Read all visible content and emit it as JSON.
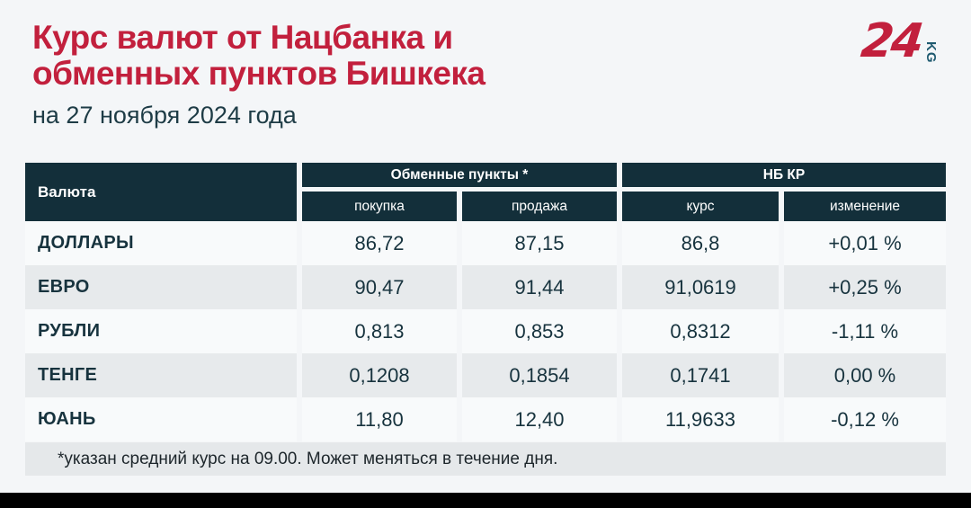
{
  "header": {
    "title_line1": "Курс валют от Нацбанка и",
    "title_line2": "обменных пунктов Бишкека",
    "subtitle": "на 27 ноября 2024 года",
    "logo": {
      "number": "24",
      "suffix": "KG"
    }
  },
  "table": {
    "col_currency": "Валюта",
    "group_exchange": "Обменные пункты *",
    "group_nbkr": "НБ КР",
    "col_buy": "покупка",
    "col_sell": "продажа",
    "col_rate": "курс",
    "col_change": "изменение",
    "rows": [
      {
        "name": "ДОЛЛАРЫ",
        "buy": "86,72",
        "sell": "87,15",
        "rate": "86,8",
        "change": "+0,01 %"
      },
      {
        "name": "ЕВРО",
        "buy": "90,47",
        "sell": "91,44",
        "rate": "91,0619",
        "change": "+0,25 %"
      },
      {
        "name": "РУБЛИ",
        "buy": "0,813",
        "sell": "0,853",
        "rate": "0,8312",
        "change": "-1,11 %"
      },
      {
        "name": "ТЕНГЕ",
        "buy": "0,1208",
        "sell": "0,1854",
        "rate": "0,1741",
        "change": "0,00 %"
      },
      {
        "name": "ЮАНЬ",
        "buy": "11,80",
        "sell": "12,40",
        "rate": "11,9633",
        "change": "-0,12 %"
      }
    ]
  },
  "footnote": "*указан средний курс на 09.00. Может меняться в течение дня.",
  "colors": {
    "accent_red": "#c2203d",
    "header_teal": "#132f3a",
    "text_dark": "#17333e",
    "row_light": "#f8fafb",
    "row_gray": "#e7eaec",
    "page_bg": "#f4f6f8"
  },
  "chart_data": {
    "type": "table",
    "title": "Курс валют от Нацбанка и обменных пунктов Бишкека",
    "subtitle": "на 27 ноября 2024 года",
    "column_groups": [
      "Валюта",
      "Обменные пункты *",
      "НБ КР"
    ],
    "columns": [
      "Валюта",
      "покупка",
      "продажа",
      "курс",
      "изменение"
    ],
    "rows": [
      [
        "ДОЛЛАРЫ",
        "86,72",
        "87,15",
        "86,8",
        "+0,01 %"
      ],
      [
        "ЕВРО",
        "90,47",
        "91,44",
        "91,0619",
        "+0,25 %"
      ],
      [
        "РУБЛИ",
        "0,813",
        "0,853",
        "0,8312",
        "-1,11 %"
      ],
      [
        "ТЕНГЕ",
        "0,1208",
        "0,1854",
        "0,1741",
        "0,00 %"
      ],
      [
        "ЮАНЬ",
        "11,80",
        "12,40",
        "11,9633",
        "-0,12 %"
      ]
    ],
    "footnote": "*указан средний курс на 09.00. Может меняться в течение дня."
  }
}
